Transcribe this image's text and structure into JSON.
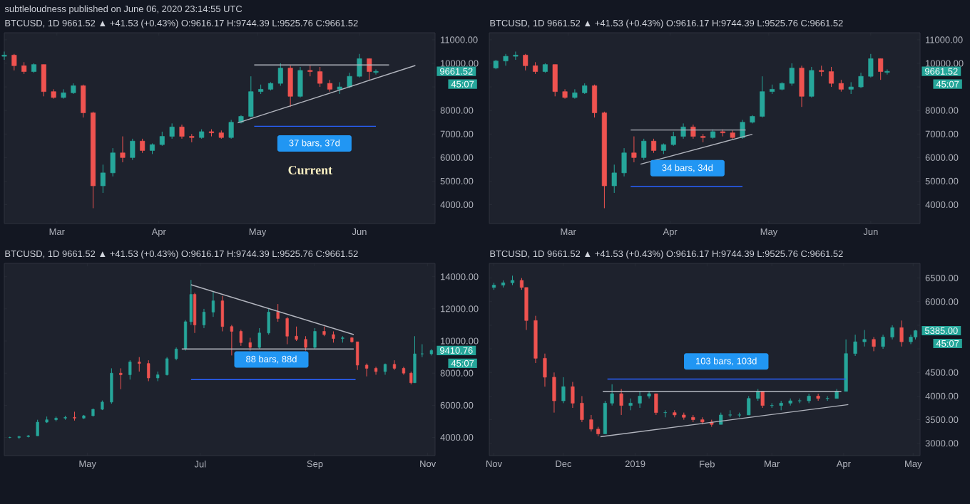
{
  "chart_data": [
    {
      "type": "candlestick",
      "title": "subtleloudness published on June 06, 2020 23:14:55 UTC",
      "subtitle": "BTCUSD, 1D 9661.52 ▲ +41.53 (+0.43%) O:9616.17 H:9744.39 L:9525.76 C:9661.52",
      "x": [
        "2020-02-14",
        "2020-02-17",
        "2020-02-20",
        "2020-02-23",
        "2020-02-26",
        "2020-02-29",
        "2020-03-03",
        "2020-03-06",
        "2020-03-09",
        "2020-03-12",
        "2020-03-15",
        "2020-03-18",
        "2020-03-21",
        "2020-03-24",
        "2020-03-27",
        "2020-03-30",
        "2020-04-02",
        "2020-04-05",
        "2020-04-08",
        "2020-04-11",
        "2020-04-14",
        "2020-04-17",
        "2020-04-20",
        "2020-04-23",
        "2020-04-26",
        "2020-04-29",
        "2020-05-02",
        "2020-05-05",
        "2020-05-08",
        "2020-05-11",
        "2020-05-14",
        "2020-05-17",
        "2020-05-20",
        "2020-05-23",
        "2020-05-26",
        "2020-05-29",
        "2020-06-01",
        "2020-06-04",
        "2020-06-06"
      ],
      "ohlc": [
        [
          10300,
          10500,
          10150,
          10350
        ],
        [
          10350,
          10400,
          9700,
          9900
        ],
        [
          9900,
          10050,
          9550,
          9650
        ],
        [
          9650,
          10000,
          9600,
          9950
        ],
        [
          9950,
          9950,
          8600,
          8800
        ],
        [
          8800,
          8900,
          8500,
          8550
        ],
        [
          8550,
          8900,
          8500,
          8750
        ],
        [
          8750,
          9150,
          8700,
          9050
        ],
        [
          9050,
          9100,
          7700,
          7900
        ],
        [
          7900,
          7950,
          3850,
          4800
        ],
        [
          4800,
          5700,
          4500,
          5350
        ],
        [
          5350,
          6400,
          5200,
          6200
        ],
        [
          6200,
          6900,
          5800,
          6000
        ],
        [
          6000,
          6800,
          5900,
          6700
        ],
        [
          6700,
          6800,
          6200,
          6300
        ],
        [
          6300,
          6600,
          6150,
          6550
        ],
        [
          6550,
          7100,
          6500,
          6900
        ],
        [
          6900,
          7450,
          6800,
          7300
        ],
        [
          7300,
          7400,
          6800,
          6900
        ],
        [
          6900,
          7000,
          6650,
          6850
        ],
        [
          6850,
          7200,
          6800,
          7100
        ],
        [
          7100,
          7200,
          6900,
          7050
        ],
        [
          7050,
          7150,
          6800,
          6850
        ],
        [
          6850,
          7600,
          6800,
          7500
        ],
        [
          7500,
          7800,
          7450,
          7750
        ],
        [
          7750,
          9450,
          7700,
          8800
        ],
        [
          8800,
          9100,
          8700,
          8900
        ],
        [
          8900,
          9200,
          8850,
          9150
        ],
        [
          9150,
          10000,
          9050,
          9800
        ],
        [
          9800,
          9900,
          8150,
          8600
        ],
        [
          8600,
          9850,
          8550,
          9700
        ],
        [
          9700,
          9900,
          9450,
          9650
        ],
        [
          9650,
          9850,
          9000,
          9150
        ],
        [
          9150,
          9300,
          8800,
          8900
        ],
        [
          8900,
          9200,
          8700,
          9000
        ],
        [
          9000,
          9600,
          8950,
          9450
        ],
        [
          9450,
          10400,
          9400,
          10200
        ],
        [
          10200,
          10200,
          9300,
          9650
        ],
        [
          9616.17,
          9744.39,
          9525.76,
          9661.52
        ]
      ],
      "series": [
        {
          "type": "line",
          "color": "#b2b5be",
          "x": [
            "2020-04-30",
            "2020-06-10"
          ],
          "values": [
            9930,
            9930
          ]
        },
        {
          "type": "line",
          "color": "#b2b5be",
          "x": [
            "2020-04-25",
            "2020-06-18"
          ],
          "values": [
            7470,
            9910
          ]
        },
        {
          "type": "line",
          "color": "#2962ff",
          "x": [
            "2020-04-30",
            "2020-06-06"
          ],
          "values": [
            7330,
            7330
          ]
        }
      ],
      "annotations": [
        "37 bars, 37d",
        "Current",
        "9661.52",
        "45:07"
      ],
      "xlim": [
        "2020-02-14",
        "2020-06-24"
      ],
      "xticks": [
        {
          "value": "2020-03-01",
          "label": "Mar"
        },
        {
          "value": "2020-04-01",
          "label": "Apr"
        },
        {
          "value": "2020-05-01",
          "label": "May"
        },
        {
          "value": "2020-06-01",
          "label": "Jun"
        }
      ],
      "ylim": [
        3200,
        11300
      ],
      "yticks": [
        {
          "value": 4000,
          "label": "4000.00"
        },
        {
          "value": 5000,
          "label": "5000.00"
        },
        {
          "value": 6000,
          "label": "6000.00"
        },
        {
          "value": 7000,
          "label": "7000.00"
        },
        {
          "value": 8000,
          "label": "8000.00"
        },
        {
          "value": 9000,
          "label": null
        },
        {
          "value": 10000,
          "label": "10000.00"
        },
        {
          "value": 11000,
          "label": "11000.00"
        }
      ]
    },
    {
      "type": "candlestick",
      "subtitle": "BTCUSD, 1D 9661.52 ▲ +41.53 (+0.43%) O:9616.17 H:9744.39 L:9525.76 C:9661.52",
      "x": [
        "2020-02-08",
        "2020-02-11",
        "2020-02-14",
        "2020-02-17",
        "2020-02-20",
        "2020-02-23",
        "2020-02-26",
        "2020-02-29",
        "2020-03-03",
        "2020-03-06",
        "2020-03-09",
        "2020-03-12",
        "2020-03-15",
        "2020-03-18",
        "2020-03-21",
        "2020-03-24",
        "2020-03-27",
        "2020-03-30",
        "2020-04-02",
        "2020-04-05",
        "2020-04-08",
        "2020-04-11",
        "2020-04-14",
        "2020-04-17",
        "2020-04-20",
        "2020-04-23",
        "2020-04-26",
        "2020-04-29",
        "2020-05-02",
        "2020-05-05",
        "2020-05-08",
        "2020-05-11",
        "2020-05-14",
        "2020-05-17",
        "2020-05-20",
        "2020-05-23",
        "2020-05-26",
        "2020-05-29",
        "2020-06-01",
        "2020-06-04",
        "2020-06-06"
      ],
      "ohlc": [
        [
          9800,
          10150,
          9750,
          10100
        ],
        [
          10100,
          10400,
          9900,
          10300
        ],
        [
          10300,
          10500,
          10150,
          10350
        ],
        [
          10350,
          10400,
          9700,
          9900
        ],
        [
          9900,
          10050,
          9550,
          9650
        ],
        [
          9650,
          10000,
          9600,
          9950
        ],
        [
          9950,
          9950,
          8600,
          8800
        ],
        [
          8800,
          8900,
          8500,
          8550
        ],
        [
          8550,
          8900,
          8500,
          8750
        ],
        [
          8750,
          9150,
          8700,
          9050
        ],
        [
          9050,
          9100,
          7700,
          7900
        ],
        [
          7900,
          7950,
          3850,
          4800
        ],
        [
          4800,
          5700,
          4500,
          5350
        ],
        [
          5350,
          6400,
          5200,
          6200
        ],
        [
          6200,
          6900,
          5800,
          6000
        ],
        [
          6000,
          6800,
          5900,
          6700
        ],
        [
          6700,
          6800,
          6200,
          6300
        ],
        [
          6300,
          6600,
          6150,
          6550
        ],
        [
          6550,
          7100,
          6500,
          6900
        ],
        [
          6900,
          7450,
          6800,
          7300
        ],
        [
          7300,
          7400,
          6800,
          6900
        ],
        [
          6900,
          7000,
          6650,
          6850
        ],
        [
          6850,
          7200,
          6800,
          7100
        ],
        [
          7100,
          7200,
          6900,
          7050
        ],
        [
          7050,
          7150,
          6800,
          6850
        ],
        [
          6850,
          7600,
          6800,
          7500
        ],
        [
          7500,
          7800,
          7450,
          7750
        ],
        [
          7750,
          9450,
          7700,
          8800
        ],
        [
          8800,
          9100,
          8700,
          8900
        ],
        [
          8900,
          9200,
          8850,
          9150
        ],
        [
          9150,
          10000,
          9050,
          9800
        ],
        [
          9800,
          9900,
          8150,
          8600
        ],
        [
          8600,
          9850,
          8550,
          9700
        ],
        [
          9700,
          9900,
          9450,
          9650
        ],
        [
          9650,
          9850,
          9000,
          9150
        ],
        [
          9150,
          9300,
          8800,
          8900
        ],
        [
          8900,
          9200,
          8700,
          9000
        ],
        [
          9000,
          9600,
          8950,
          9450
        ],
        [
          9450,
          10400,
          9400,
          10200
        ],
        [
          10200,
          10200,
          9300,
          9650
        ],
        [
          9616.17,
          9744.39,
          9525.76,
          9661.52
        ]
      ],
      "series": [
        {
          "type": "line",
          "color": "#b2b5be",
          "x": [
            "2020-03-20",
            "2020-04-24"
          ],
          "values": [
            7170,
            7170
          ]
        },
        {
          "type": "line",
          "color": "#b2b5be",
          "x": [
            "2020-03-23",
            "2020-04-26"
          ],
          "values": [
            5720,
            6990
          ]
        },
        {
          "type": "line",
          "color": "#2962ff",
          "x": [
            "2020-03-20",
            "2020-04-23"
          ],
          "values": [
            4770,
            4770
          ]
        }
      ],
      "annotations": [
        "34 bars, 34d",
        "9661.52",
        "45:07"
      ],
      "xlim": [
        "2020-02-06",
        "2020-06-16"
      ],
      "xticks": [
        {
          "value": "2020-03-01",
          "label": "Mar"
        },
        {
          "value": "2020-04-01",
          "label": "Apr"
        },
        {
          "value": "2020-05-01",
          "label": "May"
        },
        {
          "value": "2020-06-01",
          "label": "Jun"
        }
      ],
      "ylim": [
        3200,
        11300
      ],
      "yticks": [
        {
          "value": 4000,
          "label": "4000.00"
        },
        {
          "value": 5000,
          "label": "5000.00"
        },
        {
          "value": 6000,
          "label": "6000.00"
        },
        {
          "value": 7000,
          "label": "7000.00"
        },
        {
          "value": 8000,
          "label": "8000.00"
        },
        {
          "value": 9000,
          "label": null
        },
        {
          "value": 10000,
          "label": "10000.00"
        },
        {
          "value": 11000,
          "label": "11000.00"
        }
      ]
    },
    {
      "type": "candlestick",
      "subtitle": "BTCUSD, 1D 9661.52 ▲ +41.53 (+0.43%) O:9616.17 H:9744.39 L:9525.76 C:9661.52",
      "x": [
        "2019-03-20",
        "2019-03-25",
        "2019-03-30",
        "2019-04-04",
        "2019-04-09",
        "2019-04-14",
        "2019-04-19",
        "2019-04-24",
        "2019-04-29",
        "2019-05-04",
        "2019-05-09",
        "2019-05-14",
        "2019-05-19",
        "2019-05-24",
        "2019-05-29",
        "2019-06-03",
        "2019-06-08",
        "2019-06-13",
        "2019-06-18",
        "2019-06-23",
        "2019-06-26",
        "2019-06-28",
        "2019-07-03",
        "2019-07-08",
        "2019-07-13",
        "2019-07-18",
        "2019-07-23",
        "2019-07-28",
        "2019-08-02",
        "2019-08-07",
        "2019-08-12",
        "2019-08-17",
        "2019-08-22",
        "2019-08-27",
        "2019-09-01",
        "2019-09-06",
        "2019-09-11",
        "2019-09-16",
        "2019-09-21",
        "2019-09-24",
        "2019-09-29",
        "2019-10-04",
        "2019-10-09",
        "2019-10-14",
        "2019-10-19",
        "2019-10-23",
        "2019-10-25",
        "2019-10-29",
        "2019-11-03"
      ],
      "ohlc": [
        [
          4000,
          4050,
          3950,
          4000
        ],
        [
          4000,
          4100,
          3900,
          4050
        ],
        [
          4050,
          4150,
          4000,
          4100
        ],
        [
          4100,
          5100,
          4100,
          4950
        ],
        [
          4950,
          5300,
          4900,
          5100
        ],
        [
          5100,
          5300,
          5000,
          5200
        ],
        [
          5200,
          5350,
          5100,
          5250
        ],
        [
          5250,
          5600,
          5050,
          5200
        ],
        [
          5200,
          5400,
          5150,
          5350
        ],
        [
          5350,
          5800,
          5300,
          5750
        ],
        [
          5750,
          6300,
          5700,
          6200
        ],
        [
          6200,
          8300,
          6100,
          8000
        ],
        [
          8000,
          8300,
          7000,
          7900
        ],
        [
          7900,
          8800,
          7600,
          8700
        ],
        [
          8700,
          9000,
          8100,
          8600
        ],
        [
          8600,
          8800,
          7500,
          7700
        ],
        [
          7700,
          8100,
          7500,
          7900
        ],
        [
          7900,
          9000,
          7850,
          8900
        ],
        [
          8900,
          9600,
          8800,
          9500
        ],
        [
          9500,
          11300,
          9400,
          11200
        ],
        [
          11200,
          13800,
          11000,
          12900
        ],
        [
          12900,
          13000,
          10500,
          11000
        ],
        [
          11000,
          12000,
          10800,
          11800
        ],
        [
          11800,
          13100,
          11500,
          12500
        ],
        [
          12500,
          12800,
          10600,
          10900
        ],
        [
          10900,
          11000,
          9100,
          10600
        ],
        [
          10600,
          10700,
          9700,
          9900
        ],
        [
          9900,
          10200,
          9400,
          9600
        ],
        [
          9600,
          10800,
          9500,
          10500
        ],
        [
          10500,
          12000,
          10400,
          11800
        ],
        [
          11800,
          12300,
          11200,
          11400
        ],
        [
          11400,
          11500,
          9800,
          10300
        ],
        [
          10300,
          10900,
          10000,
          10100
        ],
        [
          10100,
          10300,
          9400,
          9600
        ],
        [
          9600,
          10800,
          9500,
          10600
        ],
        [
          10600,
          10900,
          10300,
          10400
        ],
        [
          10400,
          10600,
          9900,
          10150
        ],
        [
          10150,
          10300,
          9900,
          10200
        ],
        [
          10200,
          10250,
          9900,
          9950
        ],
        [
          9950,
          9950,
          8200,
          8500
        ],
        [
          8500,
          8600,
          7800,
          8300
        ],
        [
          8300,
          8400,
          7900,
          8100
        ],
        [
          8100,
          8600,
          7900,
          8550
        ],
        [
          8550,
          8800,
          8200,
          8300
        ],
        [
          8300,
          8400,
          7900,
          8000
        ],
        [
          8000,
          8100,
          7300,
          7400
        ],
        [
          7400,
          10300,
          7400,
          9200
        ],
        [
          9200,
          9800,
          9000,
          9200
        ],
        [
          9200,
          9500,
          9100,
          9410.76
        ]
      ],
      "series": [
        {
          "type": "line",
          "color": "#b2b5be",
          "x": [
            "2019-06-26",
            "2019-09-22"
          ],
          "values": [
            13500,
            10400
          ]
        },
        {
          "type": "line",
          "color": "#b2b5be",
          "x": [
            "2019-06-21",
            "2019-09-22"
          ],
          "values": [
            9500,
            9500
          ]
        },
        {
          "type": "line",
          "color": "#2962ff",
          "x": [
            "2019-06-26",
            "2019-09-23"
          ],
          "values": [
            7600,
            7600
          ]
        }
      ],
      "annotations": [
        "88 bars, 88d",
        "9410.76",
        "45:07"
      ],
      "xlim": [
        "2019-03-17",
        "2019-11-05"
      ],
      "xticks": [
        {
          "value": "2019-05-01",
          "label": "May"
        },
        {
          "value": "2019-07-01",
          "label": "Jul"
        },
        {
          "value": "2019-09-01",
          "label": "Sep"
        },
        {
          "value": "2019-11-01",
          "label": "Nov"
        }
      ],
      "ylim": [
        2870,
        14830
      ],
      "yticks": [
        {
          "value": 4000,
          "label": "4000.00"
        },
        {
          "value": 6000,
          "label": "6000.00"
        },
        {
          "value": 8000,
          "label": "8000.00"
        },
        {
          "value": 10000,
          "label": "10000.00"
        },
        {
          "value": 12000,
          "label": "12000.00"
        },
        {
          "value": 14000,
          "label": "14000.00"
        }
      ]
    },
    {
      "type": "candlestick",
      "subtitle": "BTCUSD, 1D 9661.52 ▲ +41.53 (+0.43%) O:9616.17 H:9744.39 L:9525.76 C:9661.52",
      "x": [
        "2018-11-01",
        "2018-11-05",
        "2018-11-09",
        "2018-11-13",
        "2018-11-15",
        "2018-11-19",
        "2018-11-23",
        "2018-11-27",
        "2018-12-01",
        "2018-12-05",
        "2018-12-09",
        "2018-12-13",
        "2018-12-16",
        "2018-12-19",
        "2018-12-22",
        "2018-12-26",
        "2018-12-30",
        "2019-01-03",
        "2019-01-07",
        "2019-01-10",
        "2019-01-14",
        "2019-01-18",
        "2019-01-22",
        "2019-01-26",
        "2019-01-30",
        "2019-02-03",
        "2019-02-07",
        "2019-02-11",
        "2019-02-15",
        "2019-02-19",
        "2019-02-23",
        "2019-02-25",
        "2019-03-01",
        "2019-03-05",
        "2019-03-09",
        "2019-03-13",
        "2019-03-17",
        "2019-03-21",
        "2019-03-25",
        "2019-03-29",
        "2019-04-02",
        "2019-04-06",
        "2019-04-10",
        "2019-04-14",
        "2019-04-18",
        "2019-04-22",
        "2019-04-26",
        "2019-04-30",
        "2019-05-02"
      ],
      "ohlc": [
        [
          6300,
          6400,
          6250,
          6350
        ],
        [
          6350,
          6450,
          6300,
          6400
        ],
        [
          6400,
          6550,
          6350,
          6450
        ],
        [
          6450,
          6500,
          6250,
          6300
        ],
        [
          6300,
          6300,
          5400,
          5600
        ],
        [
          5600,
          5700,
          4700,
          4800
        ],
        [
          4800,
          4900,
          4200,
          4400
        ],
        [
          4400,
          4500,
          3650,
          3900
        ],
        [
          3900,
          4400,
          3850,
          4200
        ],
        [
          4200,
          4300,
          3750,
          3850
        ],
        [
          3850,
          4000,
          3450,
          3500
        ],
        [
          3500,
          3600,
          3250,
          3300
        ],
        [
          3300,
          3350,
          3150,
          3200
        ],
        [
          3200,
          3900,
          3200,
          3850
        ],
        [
          3850,
          4250,
          3800,
          4050
        ],
        [
          4050,
          4150,
          3600,
          3800
        ],
        [
          3800,
          3950,
          3700,
          3850
        ],
        [
          3850,
          4100,
          3750,
          4000
        ],
        [
          4000,
          4100,
          3950,
          4050
        ],
        [
          4050,
          4050,
          3600,
          3650
        ],
        [
          3650,
          3700,
          3550,
          3650
        ],
        [
          3650,
          3700,
          3550,
          3600
        ],
        [
          3600,
          3650,
          3500,
          3550
        ],
        [
          3550,
          3600,
          3450,
          3500
        ],
        [
          3500,
          3550,
          3400,
          3450
        ],
        [
          3450,
          3500,
          3350,
          3400
        ],
        [
          3400,
          3650,
          3400,
          3600
        ],
        [
          3600,
          3700,
          3550,
          3600
        ],
        [
          3600,
          3650,
          3550,
          3600
        ],
        [
          3600,
          4000,
          3600,
          3950
        ],
        [
          3950,
          4150,
          3900,
          4100
        ],
        [
          4100,
          4100,
          3750,
          3800
        ],
        [
          3800,
          3850,
          3750,
          3800
        ],
        [
          3800,
          3900,
          3700,
          3850
        ],
        [
          3850,
          3950,
          3800,
          3900
        ],
        [
          3900,
          3950,
          3850,
          3900
        ],
        [
          3900,
          4050,
          3850,
          4000
        ],
        [
          4000,
          4050,
          3900,
          3950
        ],
        [
          3950,
          4000,
          3900,
          3950
        ],
        [
          3950,
          4150,
          3950,
          4100
        ],
        [
          4100,
          5200,
          4100,
          4900
        ],
        [
          4900,
          5300,
          4850,
          5150
        ],
        [
          5150,
          5400,
          5050,
          5200
        ],
        [
          5200,
          5250,
          4950,
          5050
        ],
        [
          5050,
          5300,
          5000,
          5250
        ],
        [
          5250,
          5500,
          5200,
          5450
        ],
        [
          5450,
          5600,
          5050,
          5150
        ],
        [
          5150,
          5300,
          5100,
          5250
        ],
        [
          5250,
          5400,
          5200,
          5385
        ]
      ],
      "series": [
        {
          "type": "line",
          "color": "#b2b5be",
          "x": [
            "2018-12-18",
            "2019-03-31"
          ],
          "values": [
            4100,
            4100
          ]
        },
        {
          "type": "line",
          "color": "#b2b5be",
          "x": [
            "2018-12-17",
            "2019-04-03"
          ],
          "values": [
            3140,
            3820
          ]
        },
        {
          "type": "line",
          "color": "#2962ff",
          "x": [
            "2018-12-20",
            "2019-04-02"
          ],
          "values": [
            4360,
            4360
          ]
        }
      ],
      "annotations": [
        "103 bars, 103d",
        "5385.00",
        "45:07"
      ],
      "xlim": [
        "2018-10-30",
        "2019-05-04"
      ],
      "xticks": [
        {
          "value": "2018-11-01",
          "label": "Nov"
        },
        {
          "value": "2018-12-01",
          "label": "Dec"
        },
        {
          "value": "2019-01-01",
          "label": "2019"
        },
        {
          "value": "2019-02-01",
          "label": "Feb"
        },
        {
          "value": "2019-03-01",
          "label": "Mar"
        },
        {
          "value": "2019-04-01",
          "label": "Apr"
        },
        {
          "value": "2019-05-01",
          "label": "May"
        }
      ],
      "ylim": [
        2740,
        6810
      ],
      "yticks": [
        {
          "value": 3000,
          "label": "3000.00"
        },
        {
          "value": 3500,
          "label": "3500.00"
        },
        {
          "value": 4000,
          "label": "4000.00"
        },
        {
          "value": 4500,
          "label": "4500.00"
        },
        {
          "value": 5000,
          "label": null
        },
        {
          "value": 5500,
          "label": null
        },
        {
          "value": 6000,
          "label": "6000.00"
        },
        {
          "value": 6500,
          "label": "6500.00"
        }
      ]
    }
  ]
}
